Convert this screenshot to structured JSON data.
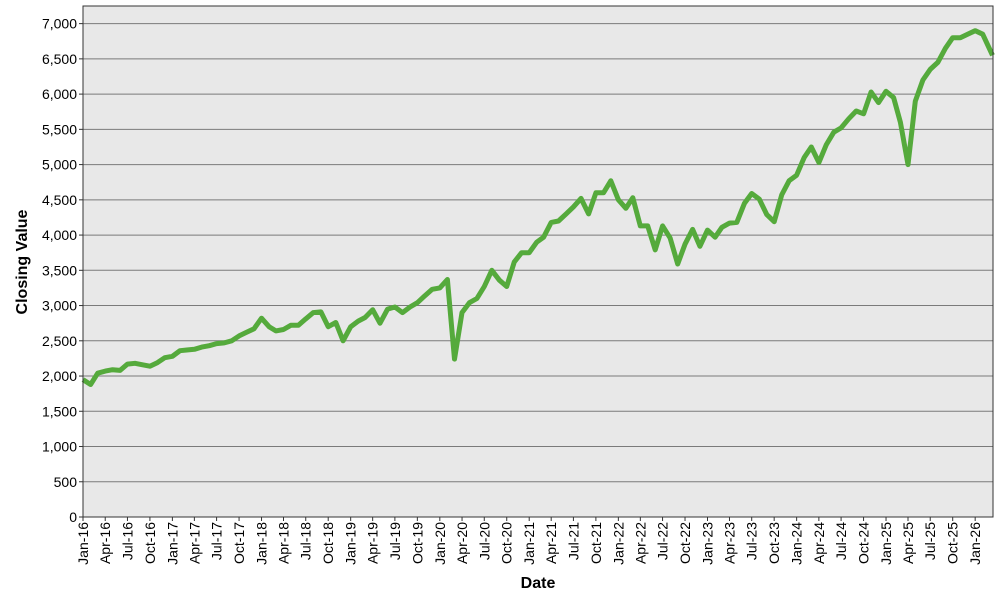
{
  "chart_data": {
    "type": "line",
    "title": "",
    "xlabel": "Date",
    "ylabel": "Closing Value",
    "ylim": [
      0,
      7250
    ],
    "xlim": [
      "2016-01-01",
      "2026-03-15"
    ],
    "yticks": [
      0,
      500,
      1000,
      1500,
      2000,
      2500,
      3000,
      3500,
      4000,
      4500,
      5000,
      5500,
      6000,
      6500,
      7000
    ],
    "ytick_labels": [
      "0",
      "500",
      "1,000",
      "1,500",
      "2,000",
      "2,500",
      "3,000",
      "3,500",
      "4,000",
      "4,500",
      "5,000",
      "5,500",
      "6,000",
      "6,500",
      "7,000"
    ],
    "xtick_labels": [
      "Jan-16",
      "Apr-16",
      "Jul-16",
      "Oct-16",
      "Jan-17",
      "Apr-17",
      "Jul-17",
      "Oct-17",
      "Jan-18",
      "Apr-18",
      "Jul-18",
      "Oct-18",
      "Jan-19",
      "Apr-19",
      "Jul-19",
      "Oct-19",
      "Jan-20",
      "Apr-20",
      "Jul-20",
      "Oct-20",
      "Jan-21",
      "Apr-21",
      "Jul-21",
      "Oct-21",
      "Jan-22",
      "Apr-22",
      "Jul-22",
      "Oct-22",
      "Jan-23",
      "Apr-23",
      "Jul-23",
      "Oct-23",
      "Jan-24",
      "Apr-24",
      "Jul-24",
      "Oct-24",
      "Jan-25",
      "Apr-25",
      "Jul-25",
      "Oct-25",
      "Jan-26"
    ],
    "grid": true,
    "colors": {
      "line": "#55AA3C",
      "plot_bg": "#E8E8E8",
      "grid": "#7A7A7A"
    },
    "series": [
      {
        "start": "2016-01",
        "frequency": "monthly",
        "values": [
          1950,
          1880,
          2040,
          2070,
          2090,
          2080,
          2170,
          2180,
          2160,
          2140,
          2190,
          2260,
          2280,
          2360,
          2370,
          2380,
          2410,
          2430,
          2460,
          2470,
          2500,
          2570,
          2620,
          2670,
          2820,
          2700,
          2640,
          2660,
          2720,
          2720,
          2810,
          2900,
          2910,
          2700,
          2760,
          2500,
          2700,
          2780,
          2830,
          2940,
          2750,
          2950,
          2980,
          2900,
          2980,
          3040,
          3140,
          3230,
          3250,
          3370,
          2240,
          2900,
          3040,
          3100,
          3270,
          3500,
          3360,
          3270,
          3620,
          3750,
          3750,
          3900,
          3970,
          4180,
          4200,
          4300,
          4400,
          4520,
          4300,
          4600,
          4600,
          4770,
          4500,
          4380,
          4530,
          4130,
          4130,
          3790,
          4130,
          3960,
          3590,
          3870,
          4080,
          3840,
          4070,
          3970,
          4110,
          4170,
          4180,
          4450,
          4590,
          4510,
          4290,
          4190,
          4570,
          4770,
          4850,
          5100,
          5250,
          5030,
          5280,
          5460,
          5520,
          5650,
          5760,
          5720,
          6030,
          5880,
          6040,
          5950,
          5600,
          5000,
          5900,
          6200,
          6350,
          6450,
          6650,
          6800,
          6800,
          6850,
          6900,
          6850,
          6550
        ]
      }
    ]
  }
}
